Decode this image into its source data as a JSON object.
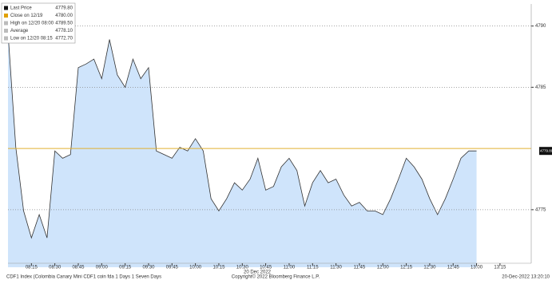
{
  "chart_data": {
    "type": "area",
    "legend": [
      {
        "label": "Last Price",
        "value": "4779.80",
        "color": "#111111"
      },
      {
        "label": "Close on 12/19",
        "value": "4780.00",
        "color": "#e0a000"
      },
      {
        "label": "High on 12/20 08:00",
        "value": "4789.50",
        "color": "#bbbbbb"
      },
      {
        "label": "Average",
        "value": "4778.10",
        "color": "#bbbbbb"
      },
      {
        "label": "Low on 12/20 08:15",
        "value": "4772.70",
        "color": "#bbbbbb"
      }
    ],
    "x": [
      "08:00",
      "08:05",
      "08:10",
      "08:15",
      "08:20",
      "08:25",
      "08:30",
      "08:35",
      "08:40",
      "08:45",
      "08:50",
      "08:55",
      "09:00",
      "09:05",
      "09:10",
      "09:15",
      "09:20",
      "09:25",
      "09:30",
      "09:35",
      "09:40",
      "09:45",
      "09:50",
      "09:55",
      "10:00",
      "10:05",
      "10:10",
      "10:15",
      "10:20",
      "10:25",
      "10:30",
      "10:35",
      "10:40",
      "10:45",
      "10:50",
      "10:55",
      "11:00",
      "11:05",
      "11:10",
      "11:15",
      "11:20",
      "11:25",
      "11:30",
      "11:35",
      "11:40",
      "11:45",
      "11:50",
      "11:55",
      "12:00",
      "12:05",
      "12:10",
      "12:15",
      "12:20",
      "12:25",
      "12:30",
      "12:35",
      "12:40",
      "12:45",
      "12:50",
      "12:55",
      "13:00"
    ],
    "series": [
      {
        "name": "Last Price",
        "color": "#333333",
        "fill": "#cfe4fb",
        "values": [
          4789.5,
          4780.1,
          4774.9,
          4772.7,
          4774.6,
          4772.7,
          4779.8,
          4779.2,
          4779.5,
          4786.6,
          4786.9,
          4787.3,
          4785.7,
          4788.9,
          4786.0,
          4785.0,
          4787.3,
          4785.7,
          4786.6,
          4779.8,
          4779.5,
          4779.2,
          4780.1,
          4779.8,
          4780.8,
          4779.8,
          4775.9,
          4774.9,
          4775.9,
          4777.2,
          4776.6,
          4777.5,
          4779.2,
          4776.6,
          4776.9,
          4778.5,
          4779.2,
          4778.2,
          4775.3,
          4777.2,
          4778.2,
          4777.2,
          4777.5,
          4776.2,
          4775.3,
          4775.6,
          4774.9,
          4774.9,
          4774.6,
          4775.9,
          4777.5,
          4779.2,
          4778.5,
          4777.5,
          4775.9,
          4774.6,
          4775.9,
          4777.5,
          4779.2,
          4779.8,
          4779.8
        ]
      }
    ],
    "close_line": {
      "value": 4780,
      "color": "#e0b030"
    },
    "last_tag": {
      "value": 4779.8,
      "label": "4779.80"
    },
    "xlim": [
      "08:00",
      "13:35"
    ],
    "xticks": [
      "08:15",
      "08:30",
      "08:45",
      "09:00",
      "09:15",
      "09:30",
      "09:45",
      "10:00",
      "10:15",
      "10:30",
      "10:45",
      "11:00",
      "11:15",
      "11:30",
      "11:45",
      "12:00",
      "12:15",
      "12:30",
      "12:45",
      "13:00",
      "13:15"
    ],
    "ylim": [
      4770.3,
      4791.8
    ],
    "yticks": [
      4775,
      4785,
      4790
    ],
    "grid": true,
    "date_label": "20 Dec 2022",
    "footer_left": "CDF1 Index (Colombia Canary Mini CDF1 coin fda 1 Days 1 Seven Days",
    "footer_center": "Copyright© 2022 Bloomberg Finance L.P.",
    "footer_right": "20-Dec-2022 13:20:10"
  }
}
